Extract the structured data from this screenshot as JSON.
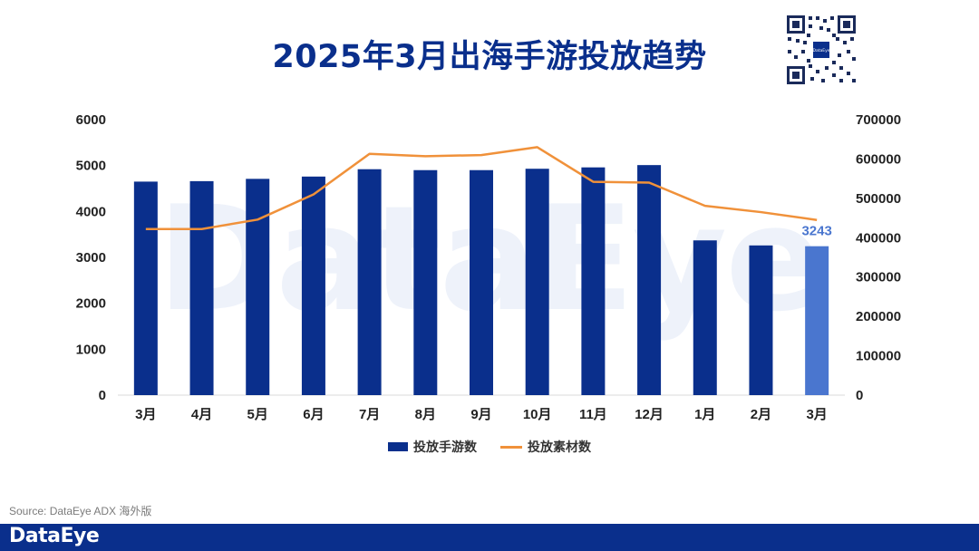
{
  "title": "2025年3月出海手游投放趋势",
  "watermark": "DataEye",
  "qr_code": {
    "label": "DataEye"
  },
  "source": "Source: DataEye ADX 海外版",
  "footer": {
    "logo": "DataEye"
  },
  "colors": {
    "bar": "#0a2f8c",
    "bar_highlight": "#4a76cf",
    "line": "#f0913a",
    "title": "#0a2f8c",
    "footer_bg": "#0a2f8c"
  },
  "chart_data": {
    "type": "bar",
    "title": "2025年3月出海手游投放趋势",
    "categories": [
      "3月",
      "4月",
      "5月",
      "6月",
      "7月",
      "8月",
      "9月",
      "10月",
      "11月",
      "12月",
      "1月",
      "2月",
      "3月"
    ],
    "series": [
      {
        "name": "投放手游数",
        "type": "bar",
        "axis": "left",
        "values": [
          4650,
          4660,
          4710,
          4760,
          4920,
          4900,
          4900,
          4930,
          4960,
          5010,
          3370,
          3260,
          3243
        ]
      },
      {
        "name": "投放素材数",
        "type": "line",
        "axis": "right",
        "values": [
          422000,
          422000,
          446000,
          510000,
          613000,
          607000,
          610000,
          630000,
          542000,
          540000,
          481000,
          465000,
          445000
        ]
      }
    ],
    "data_labels": [
      {
        "series": "投放手游数",
        "index": 12,
        "text": "3243"
      }
    ],
    "y_left": {
      "min": 0,
      "max": 6000,
      "ticks": [
        "0",
        "1000",
        "2000",
        "3000",
        "4000",
        "5000",
        "6000"
      ]
    },
    "y_right": {
      "min": 0,
      "max": 700000,
      "ticks": [
        "0",
        "100000",
        "200000",
        "300000",
        "400000",
        "500000",
        "600000",
        "700000"
      ]
    },
    "legend": [
      "投放手游数",
      "投放素材数"
    ],
    "legend_position": "bottom",
    "grid": false
  }
}
